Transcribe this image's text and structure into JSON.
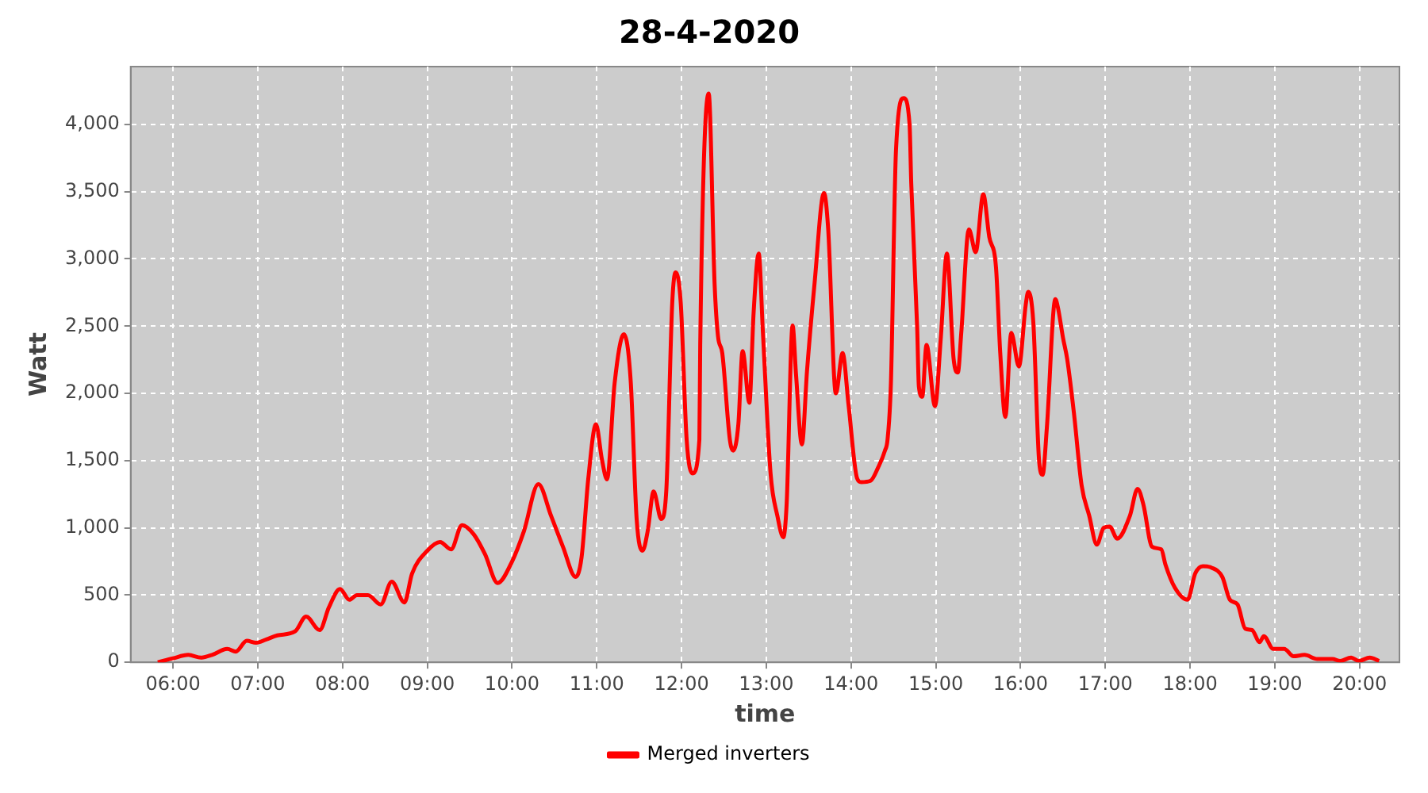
{
  "chart_data": {
    "type": "line",
    "title": "28-4-2020",
    "xlabel": "time",
    "ylabel": "Watt",
    "xlim": [
      5.5,
      20.47
    ],
    "ylim": [
      0,
      4430
    ],
    "xticks": [
      {
        "value": 6,
        "label": "06:00"
      },
      {
        "value": 7,
        "label": "07:00"
      },
      {
        "value": 8,
        "label": "08:00"
      },
      {
        "value": 9,
        "label": "09:00"
      },
      {
        "value": 10,
        "label": "10:00"
      },
      {
        "value": 11,
        "label": "11:00"
      },
      {
        "value": 12,
        "label": "12:00"
      },
      {
        "value": 13,
        "label": "13:00"
      },
      {
        "value": 14,
        "label": "14:00"
      },
      {
        "value": 15,
        "label": "15:00"
      },
      {
        "value": 16,
        "label": "16:00"
      },
      {
        "value": 17,
        "label": "17:00"
      },
      {
        "value": 18,
        "label": "18:00"
      },
      {
        "value": 19,
        "label": "19:00"
      },
      {
        "value": 20,
        "label": "20:00"
      }
    ],
    "yticks": [
      0,
      500,
      {
        "value": 1000,
        "label": "1,000"
      },
      {
        "value": 1500,
        "label": "1,500"
      },
      {
        "value": 2000,
        "label": "2,000"
      },
      {
        "value": 2500,
        "label": "2,500"
      },
      {
        "value": 3000,
        "label": "3,000"
      },
      {
        "value": 3500,
        "label": "3,500"
      },
      {
        "value": 4000,
        "label": "4,000"
      }
    ],
    "grid": true,
    "legend": "bottom",
    "line_style": "solid",
    "series": [
      {
        "name": "Merged inverters",
        "color": "#ff0000",
        "x": [
          5.82,
          6.0,
          6.18,
          6.33,
          6.46,
          6.64,
          6.74,
          6.87,
          6.98,
          7.1,
          7.23,
          7.44,
          7.57,
          7.73,
          7.84,
          7.97,
          8.08,
          8.17,
          8.3,
          8.45,
          8.58,
          8.73,
          8.82,
          9.0,
          9.15,
          9.28,
          9.41,
          9.55,
          9.68,
          9.83,
          10.0,
          10.14,
          10.31,
          10.46,
          10.6,
          10.75,
          10.82,
          10.9,
          10.99,
          11.06,
          11.12,
          11.21,
          11.32,
          11.4,
          11.47,
          11.54,
          11.6,
          11.67,
          11.76,
          11.82,
          11.89,
          11.93,
          11.99,
          12.06,
          12.13,
          12.21,
          12.22,
          12.32,
          12.39,
          12.43,
          12.48,
          12.57,
          12.61,
          12.67,
          12.72,
          12.8,
          12.85,
          12.91,
          12.96,
          13.05,
          13.13,
          13.2,
          13.24,
          13.31,
          13.35,
          13.42,
          13.48,
          13.57,
          13.68,
          13.73,
          13.82,
          13.9,
          13.97,
          14.07,
          14.12,
          14.23,
          14.32,
          14.4,
          14.43,
          14.47,
          14.53,
          14.62,
          14.69,
          14.71,
          14.78,
          14.8,
          14.84,
          14.89,
          14.99,
          15.06,
          15.13,
          15.21,
          15.26,
          15.3,
          15.39,
          15.47,
          15.56,
          15.63,
          15.71,
          15.76,
          15.82,
          15.89,
          15.98,
          16.06,
          16.09,
          16.15,
          16.22,
          16.26,
          16.31,
          16.41,
          16.44,
          16.5,
          16.55,
          16.63,
          16.72,
          16.81,
          16.9,
          16.98,
          17.05,
          17.14,
          17.29,
          17.38,
          17.45,
          17.55,
          17.66,
          17.71,
          17.82,
          17.97,
          18.06,
          18.15,
          18.25,
          18.38,
          18.47,
          18.56,
          18.65,
          18.73,
          18.82,
          18.87,
          18.98,
          19.11,
          19.22,
          19.35,
          19.5,
          19.68,
          19.77,
          19.9,
          19.99,
          20.12,
          20.23
        ],
        "values": [
          0,
          30,
          55,
          35,
          55,
          100,
          80,
          160,
          145,
          170,
          200,
          230,
          340,
          240,
          410,
          545,
          465,
          500,
          500,
          430,
          600,
          445,
          660,
          830,
          895,
          840,
          1020,
          950,
          805,
          590,
          750,
          975,
          1325,
          1090,
          860,
          635,
          780,
          1370,
          1770,
          1510,
          1360,
          2075,
          2440,
          2090,
          1065,
          830,
          975,
          1270,
          1065,
          1280,
          2675,
          2900,
          2675,
          1655,
          1405,
          1655,
          2360,
          4230,
          2810,
          2425,
          2300,
          1655,
          1575,
          1770,
          2315,
          1930,
          2600,
          3040,
          2450,
          1405,
          1090,
          930,
          1180,
          2505,
          2145,
          1620,
          2165,
          2825,
          3490,
          3220,
          2000,
          2300,
          1915,
          1370,
          1340,
          1350,
          1450,
          1575,
          1655,
          2075,
          3810,
          4195,
          4000,
          3560,
          2485,
          2050,
          1975,
          2360,
          1905,
          2425,
          3040,
          2255,
          2155,
          2450,
          3220,
          3050,
          3480,
          3165,
          2935,
          2300,
          1825,
          2450,
          2200,
          2655,
          2755,
          2530,
          1485,
          1395,
          1745,
          2700,
          2640,
          2415,
          2255,
          1850,
          1315,
          1090,
          875,
          1000,
          1010,
          920,
          1090,
          1290,
          1170,
          860,
          840,
          725,
          555,
          465,
          660,
          715,
          705,
          635,
          465,
          430,
          250,
          240,
          150,
          195,
          100,
          100,
          45,
          55,
          25,
          25,
          10,
          35,
          10,
          35,
          10
        ]
      }
    ]
  }
}
